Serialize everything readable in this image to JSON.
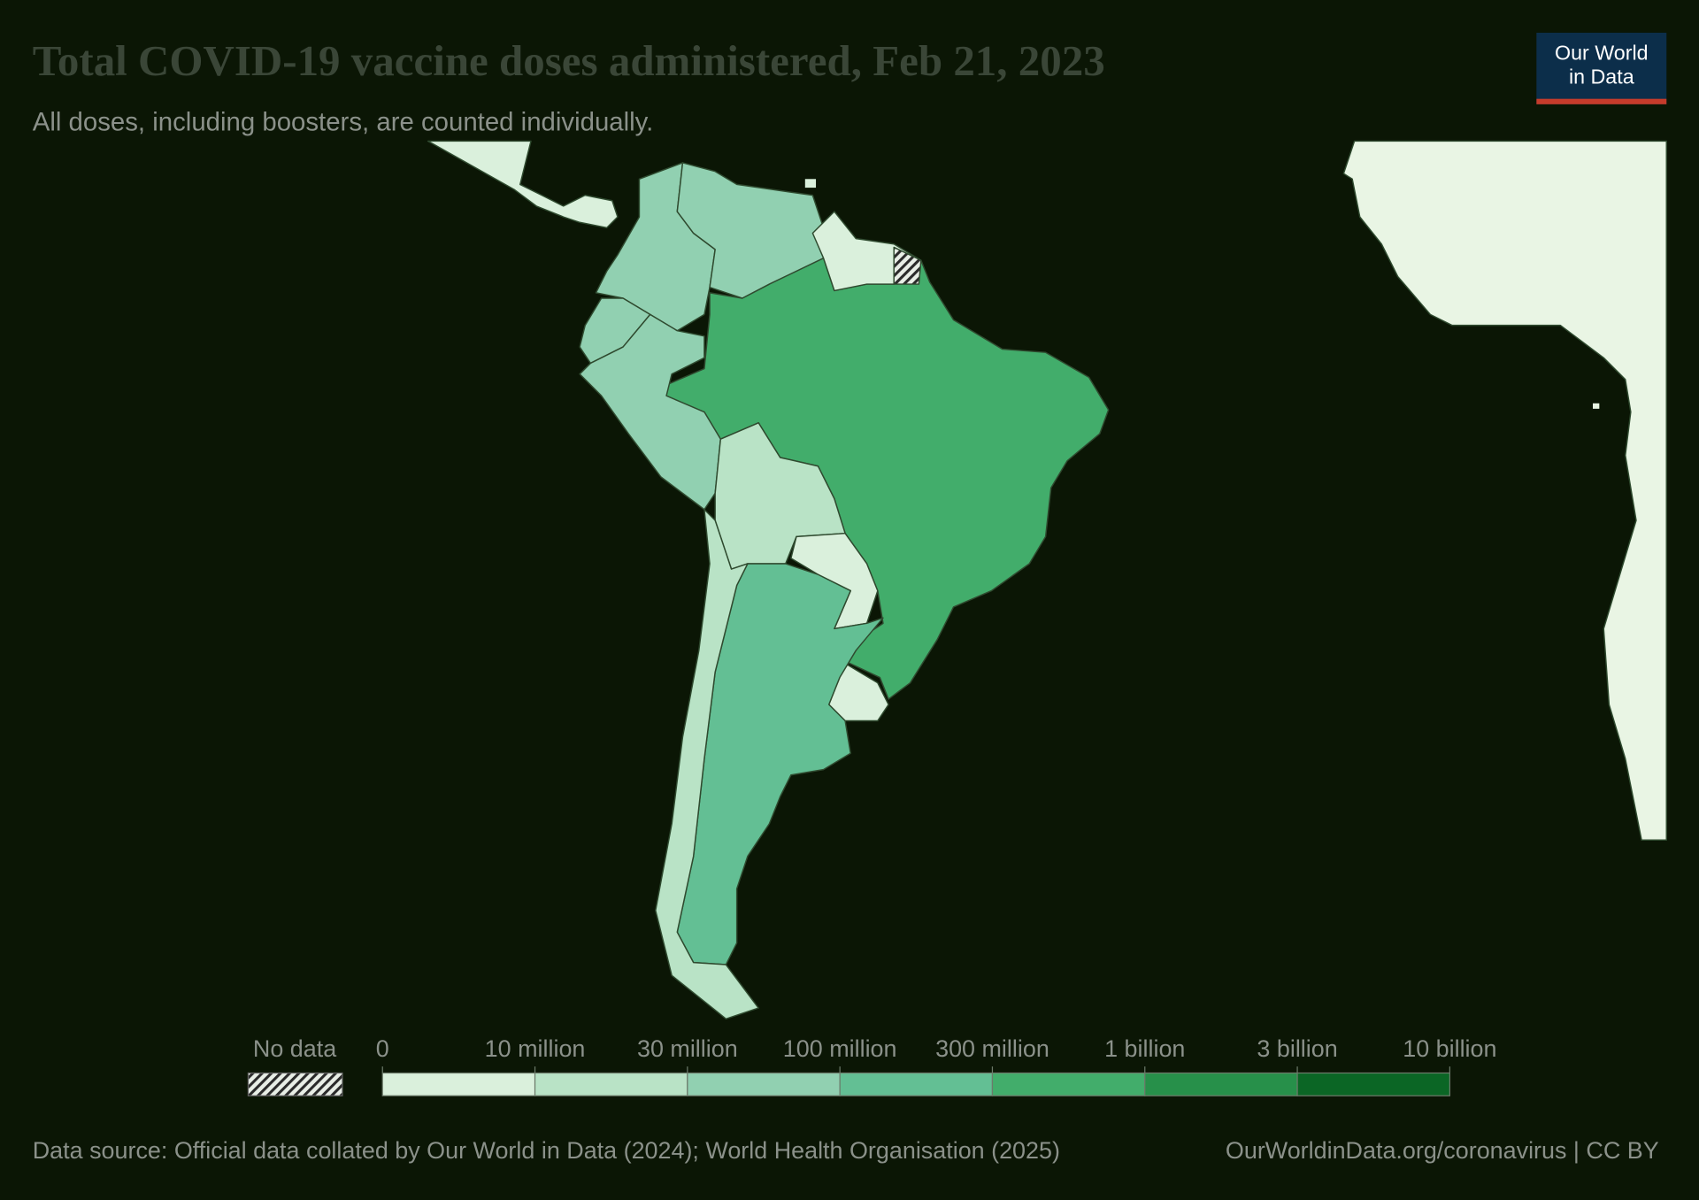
{
  "header": {
    "title": "Total COVID-19 vaccine doses administered, Feb 21, 2023",
    "subtitle": "All doses, including boosters, are counted individually.",
    "logo": [
      "Our World",
      "in Data"
    ]
  },
  "legend": {
    "no_data": "No data",
    "labels": [
      "0",
      "10 million",
      "30 million",
      "100 million",
      "300 million",
      "1 billion",
      "3 billion",
      "10 billion"
    ],
    "colors": [
      "#daf0dc",
      "#b9e3c6",
      "#91d0b1",
      "#63bf94",
      "#42ad6b",
      "#27904a",
      "#0b6625"
    ]
  },
  "footer": {
    "source": "Data source: Official data collated by Our World in Data (2024); World Health Organisation (2025)",
    "link": "OurWorldinData.org/coronavirus | CC BY"
  }
}
